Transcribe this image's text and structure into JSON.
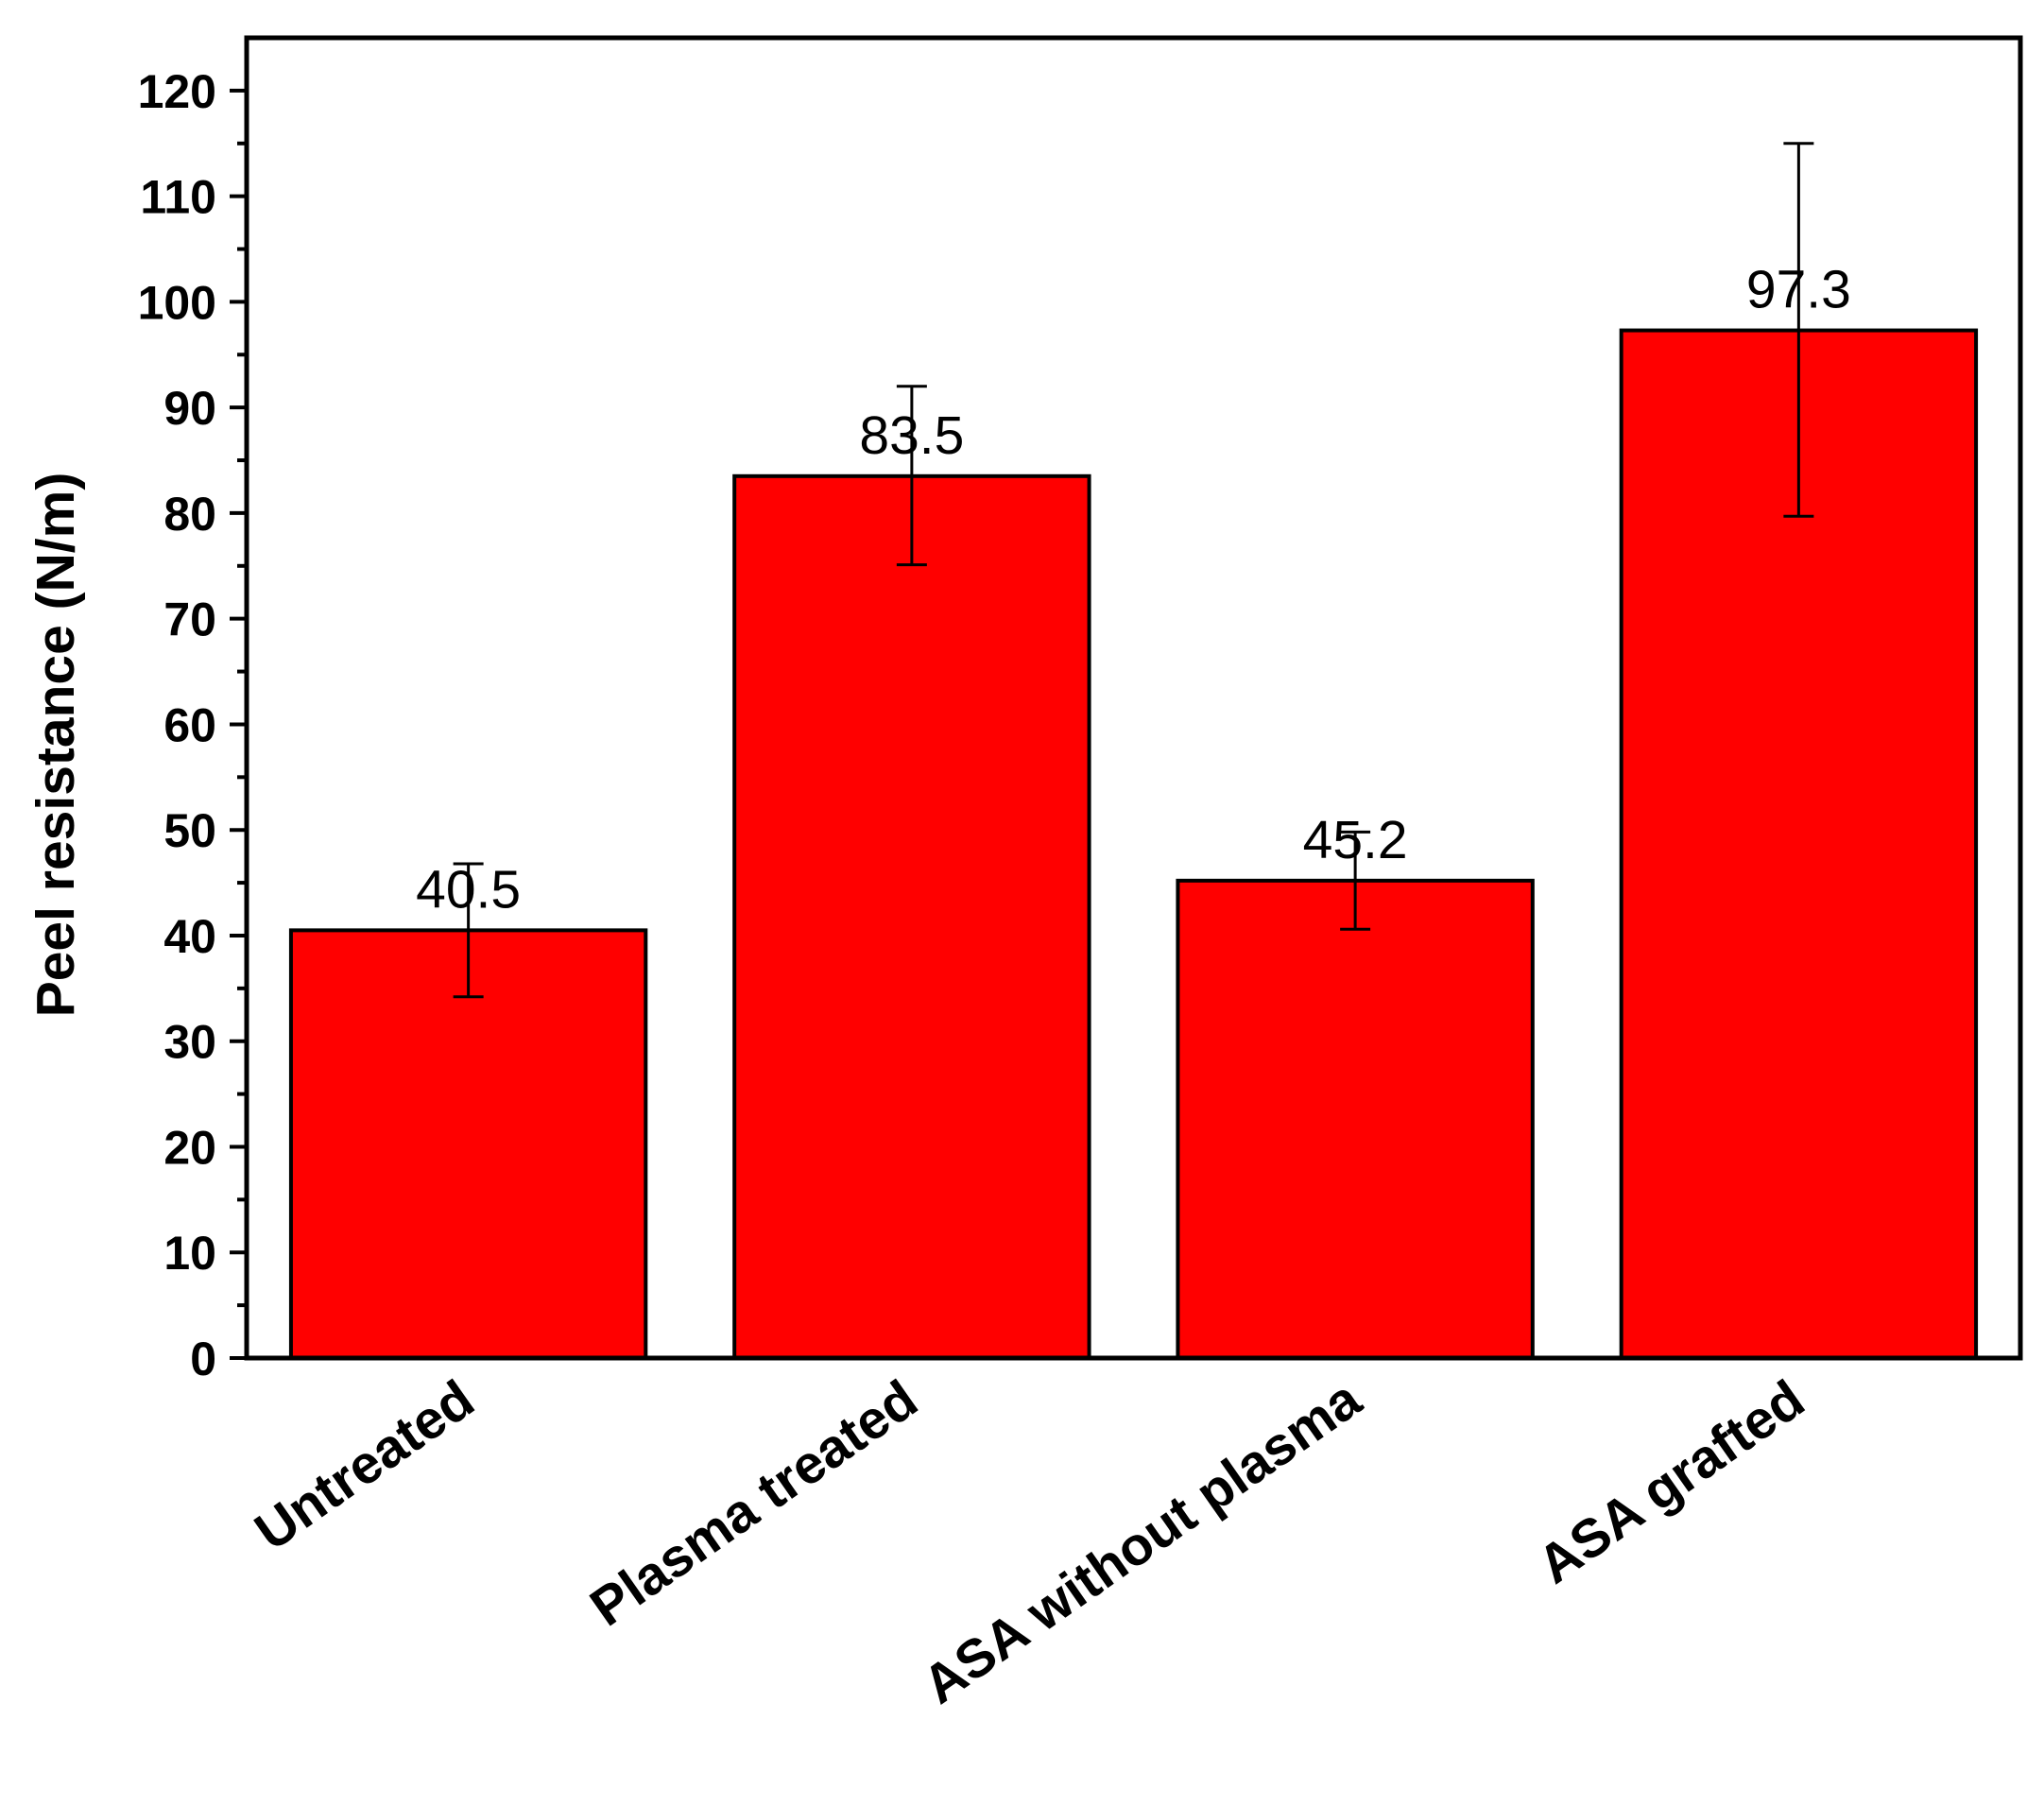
{
  "chart_data": {
    "type": "bar",
    "title": "",
    "xlabel": "",
    "ylabel": "Peel resistance (N/m)",
    "ylim": [
      0,
      125
    ],
    "yticks": [
      0,
      10,
      20,
      30,
      40,
      50,
      60,
      70,
      80,
      90,
      100,
      110,
      120
    ],
    "grid": false,
    "legend": "none",
    "bar_color": "#ff0000",
    "categories": [
      "Untreated",
      "Plasma treated",
      "ASA without plasma",
      "ASA grafted"
    ],
    "values": [
      40.5,
      83.5,
      45.2,
      97.3
    ],
    "data_labels": [
      "40.5",
      "83.5",
      "45.2",
      "97.3"
    ],
    "error_low": [
      34.2,
      75.1,
      40.6,
      79.7
    ],
    "error_high": [
      46.8,
      92.0,
      49.8,
      115.0
    ]
  }
}
